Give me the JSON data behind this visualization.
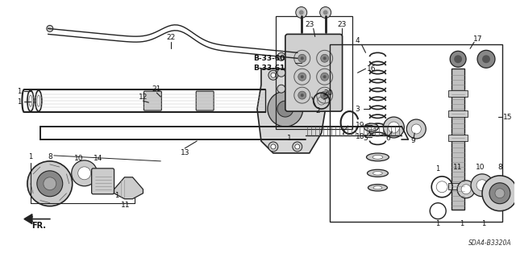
{
  "bg_color": "#ffffff",
  "line_color": "#222222",
  "gray_dark": "#555555",
  "gray_mid": "#888888",
  "gray_light": "#bbbbbb",
  "gray_fill": "#cccccc",
  "ref_code": "SDA4-B3320A",
  "b3360": "B-33-60",
  "b3361": "B-33-61",
  "fr_label": "FR.",
  "figw": 6.4,
  "figh": 3.2,
  "dpi": 100
}
